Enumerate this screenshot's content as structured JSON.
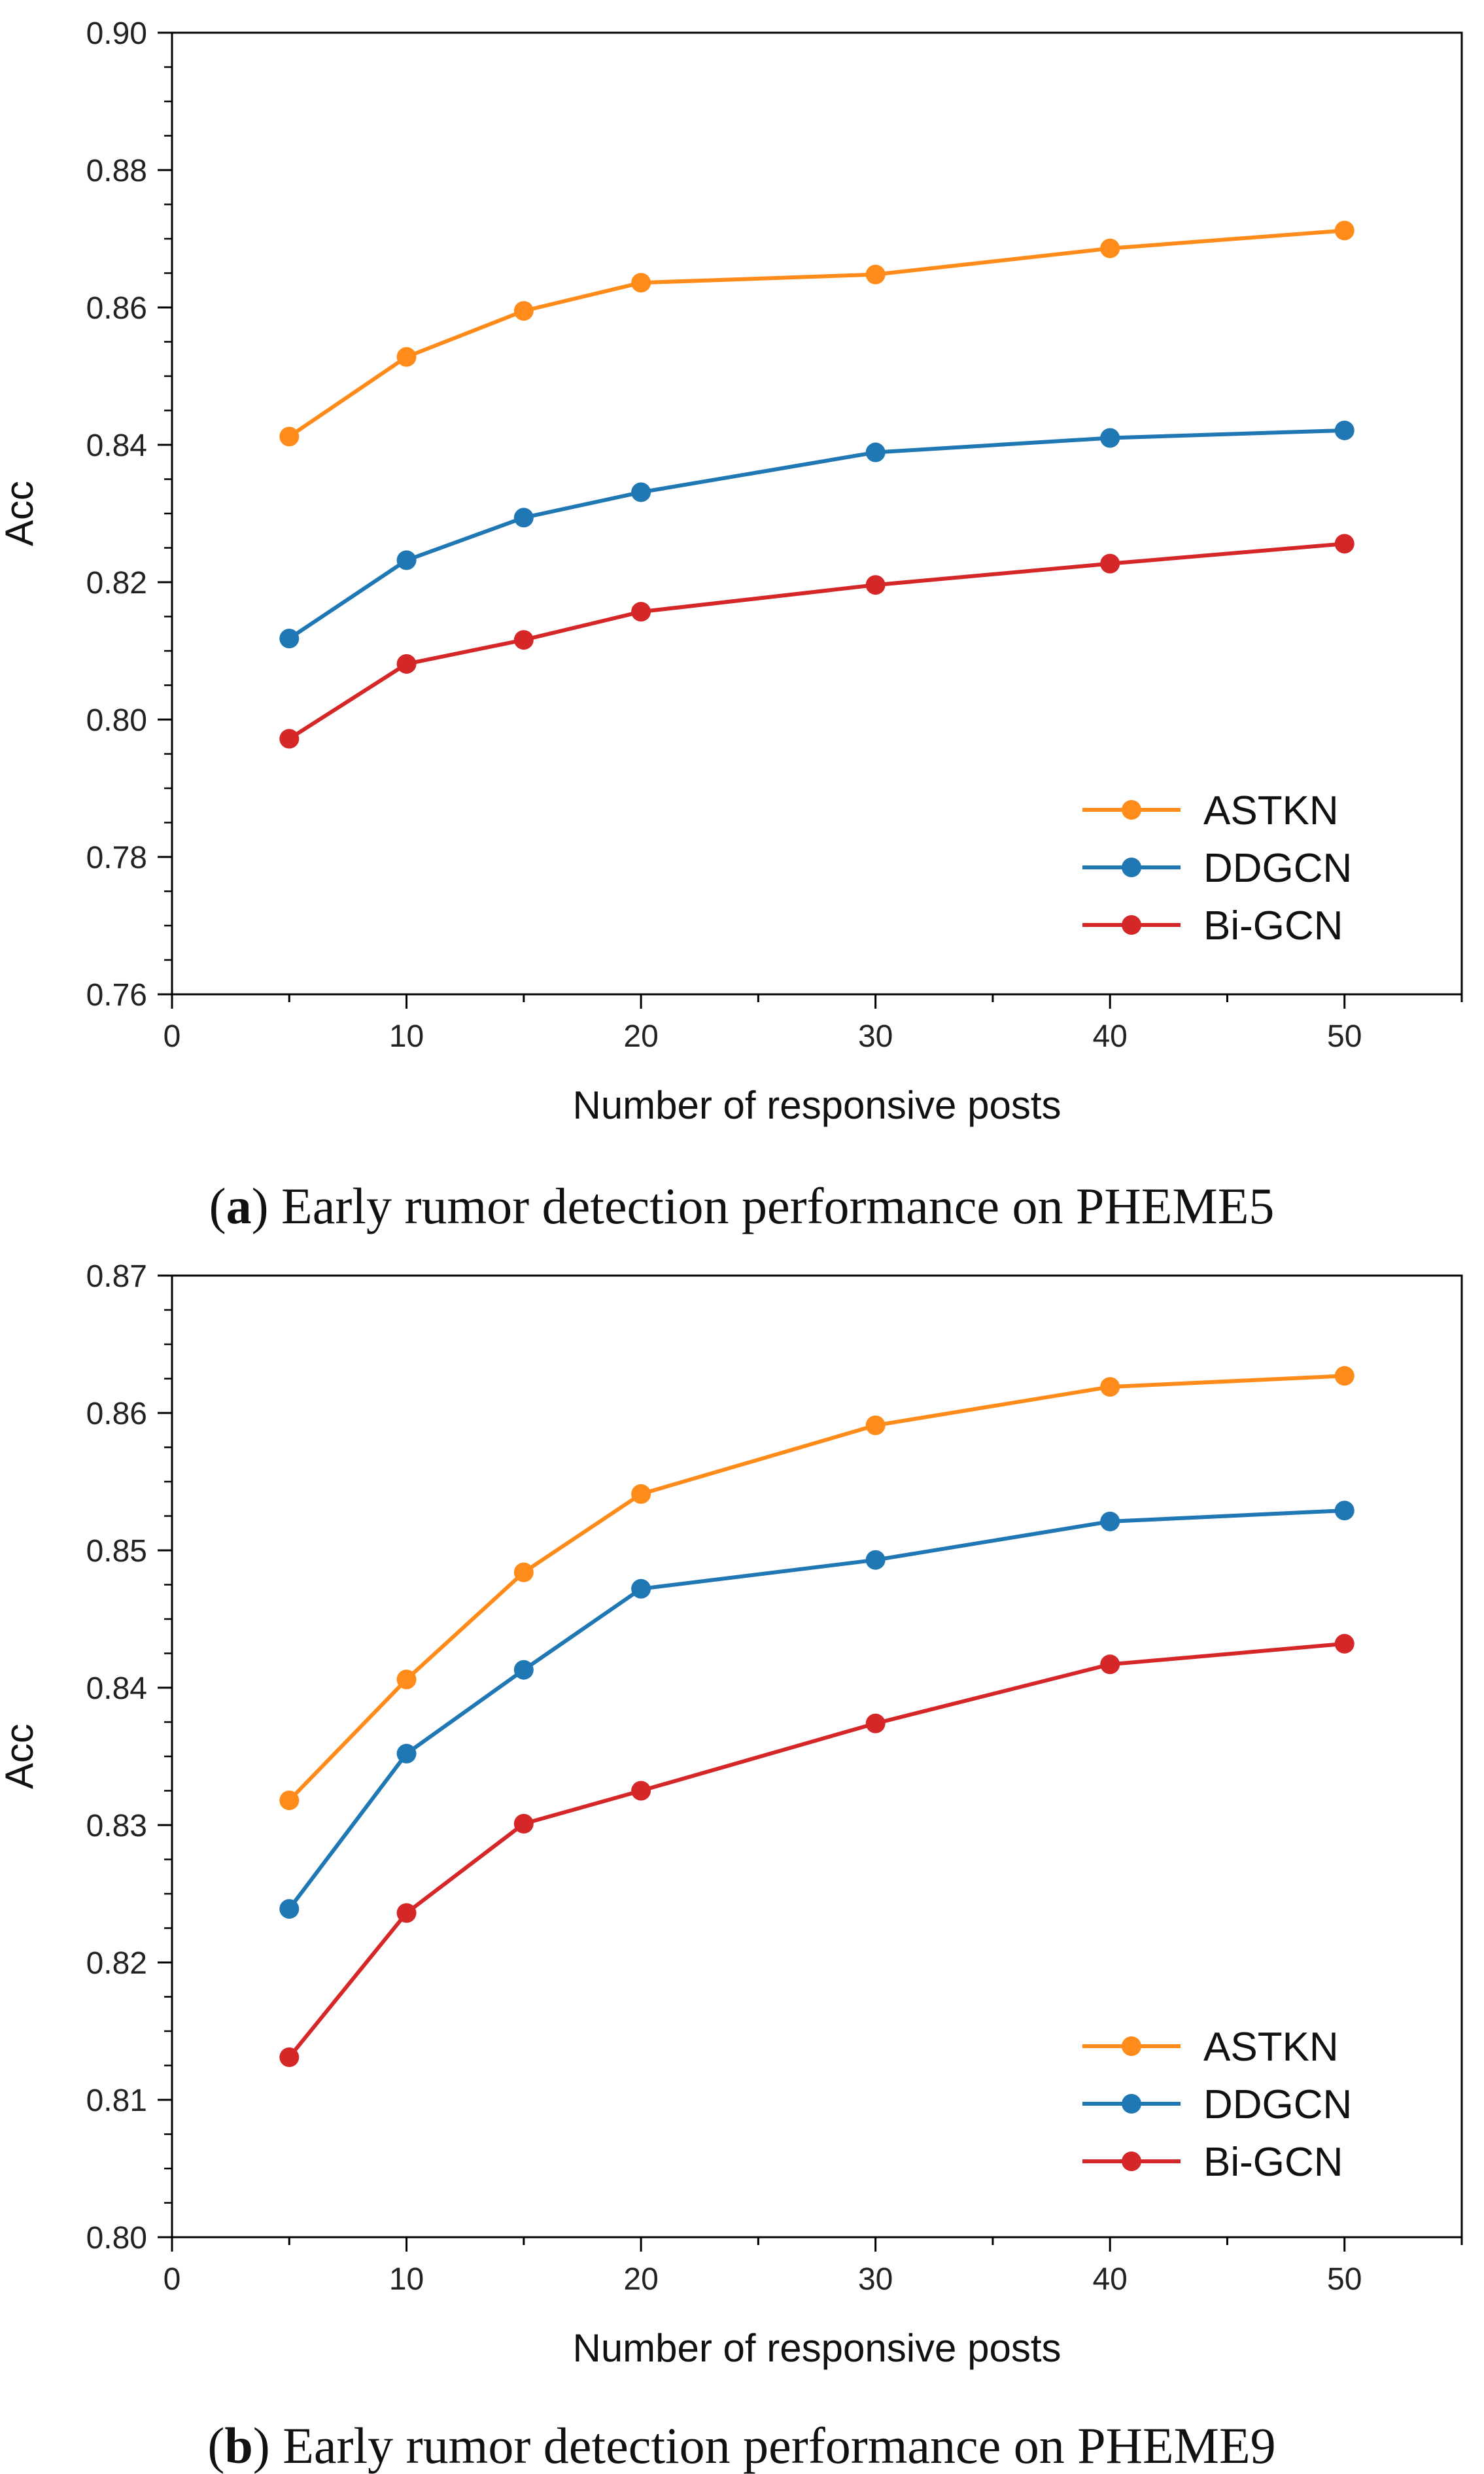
{
  "chart_data": [
    {
      "type": "line",
      "caption_prefix": "(",
      "caption_letter": "a",
      "caption_text": ") Early rumor detection performance on PHEME5",
      "xlabel": "Number of responsive posts",
      "ylabel": "Acc",
      "xlim": [
        0,
        55
      ],
      "ylim": [
        0.76,
        0.9
      ],
      "xticks": [
        0,
        10,
        20,
        30,
        40,
        50
      ],
      "xtick_labels": [
        "0",
        "10",
        "20",
        "30",
        "40",
        "50"
      ],
      "yticks": [
        0.76,
        0.78,
        0.8,
        0.82,
        0.84,
        0.86,
        0.88,
        0.9
      ],
      "ytick_labels": [
        "0.76",
        "0.78",
        "0.80",
        "0.82",
        "0.84",
        "0.86",
        "0.88",
        "0.90"
      ],
      "x": [
        5,
        10,
        15,
        20,
        30,
        40,
        50
      ],
      "legend_position": "bottom-right",
      "series": [
        {
          "name": "ASTKN",
          "color": "#ff8c1a",
          "values": [
            0.8412,
            0.8528,
            0.8595,
            0.8636,
            0.8648,
            0.8686,
            0.8712
          ]
        },
        {
          "name": "DDGCN",
          "color": "#1f77b4",
          "values": [
            0.8118,
            0.8232,
            0.8294,
            0.8331,
            0.8389,
            0.841,
            0.8421
          ]
        },
        {
          "name": "Bi-GCN",
          "color": "#d62728",
          "values": [
            0.7972,
            0.8081,
            0.8116,
            0.8157,
            0.8196,
            0.8227,
            0.8256
          ]
        }
      ]
    },
    {
      "type": "line",
      "caption_prefix": "(",
      "caption_letter": "b",
      "caption_text": ") Early rumor detection performance on PHEME9",
      "xlabel": "Number of responsive posts",
      "ylabel": "Acc",
      "xlim": [
        0,
        55
      ],
      "ylim": [
        0.8,
        0.87
      ],
      "xticks": [
        0,
        10,
        20,
        30,
        40,
        50
      ],
      "xtick_labels": [
        "0",
        "10",
        "20",
        "30",
        "40",
        "50"
      ],
      "yticks": [
        0.8,
        0.81,
        0.82,
        0.83,
        0.84,
        0.85,
        0.86,
        0.87
      ],
      "ytick_labels": [
        "0.80",
        "0.81",
        "0.82",
        "0.83",
        "0.84",
        "0.85",
        "0.86",
        "0.87"
      ],
      "x": [
        5,
        10,
        15,
        20,
        30,
        40,
        50
      ],
      "legend_position": "bottom-right",
      "series": [
        {
          "name": "ASTKN",
          "color": "#ff8c1a",
          "values": [
            0.8318,
            0.8406,
            0.8484,
            0.8541,
            0.8591,
            0.8619,
            0.8627
          ]
        },
        {
          "name": "DDGCN",
          "color": "#1f77b4",
          "values": [
            0.8239,
            0.8352,
            0.8413,
            0.8472,
            0.8493,
            0.8521,
            0.8529
          ]
        },
        {
          "name": "Bi-GCN",
          "color": "#d62728",
          "values": [
            0.8131,
            0.8236,
            0.8301,
            0.8325,
            0.8374,
            0.8417,
            0.8432
          ]
        }
      ]
    }
  ]
}
